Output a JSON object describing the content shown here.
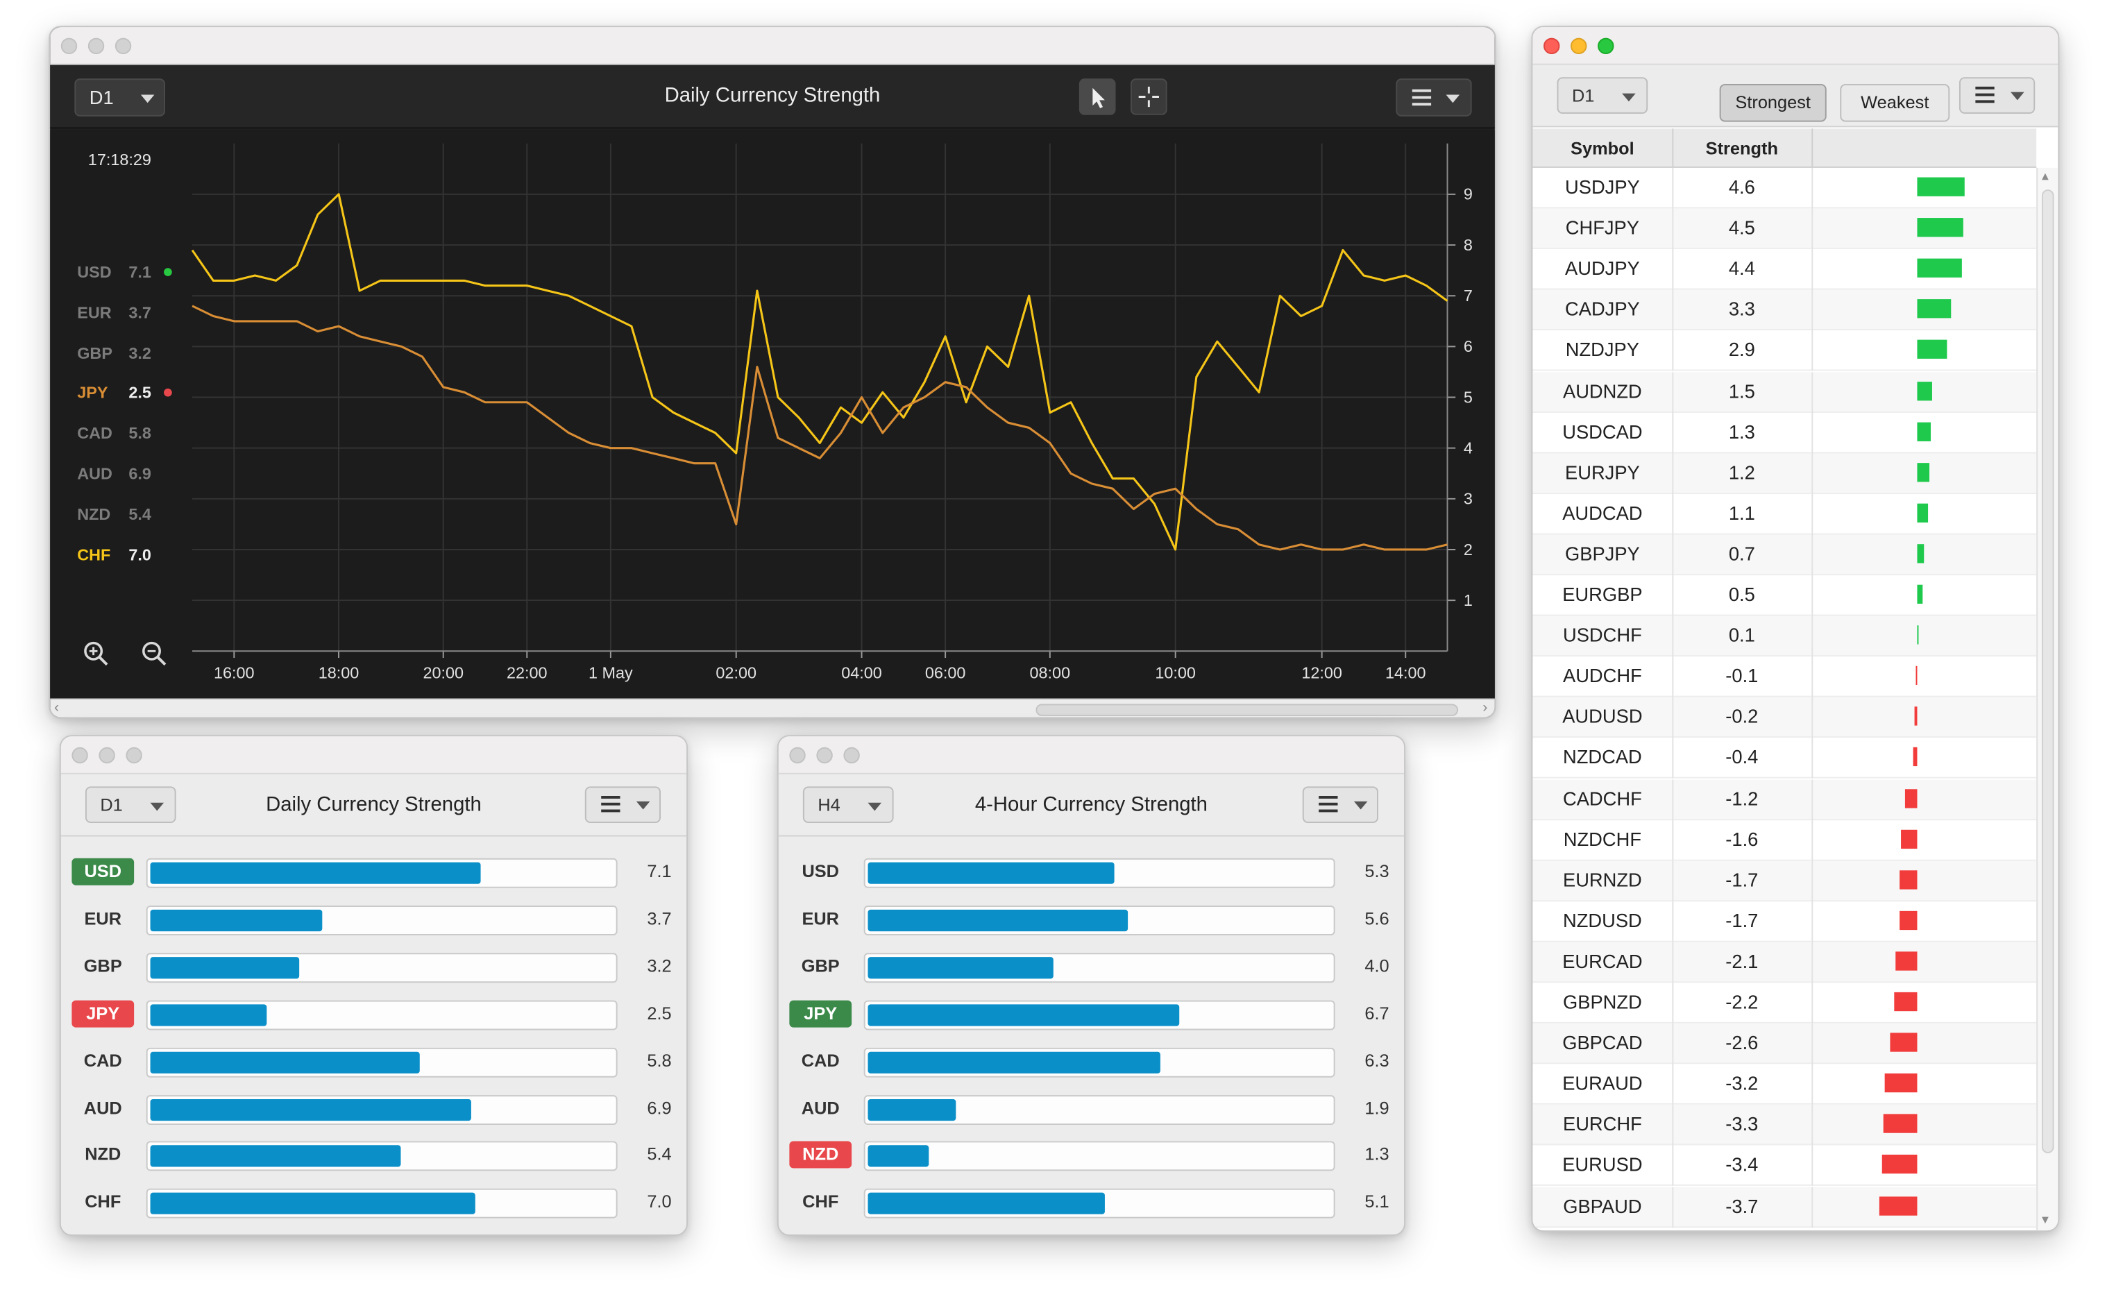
{
  "chart_window": {
    "timeframe": "D1",
    "title": "Daily Currency Strength",
    "clock": "17:18:29",
    "legend": [
      {
        "code": "USD",
        "value": "7.1",
        "dot": "#28c840"
      },
      {
        "code": "EUR",
        "value": "3.7"
      },
      {
        "code": "GBP",
        "value": "3.2"
      },
      {
        "code": "JPY",
        "value": "2.5",
        "dot": "#e8484b"
      },
      {
        "code": "CAD",
        "value": "5.8"
      },
      {
        "code": "AUD",
        "value": "6.9"
      },
      {
        "code": "NZD",
        "value": "5.4"
      },
      {
        "code": "CHF",
        "value": "7.0"
      }
    ],
    "colors": {
      "chf": "#f5c518",
      "jpy": "#d98e35",
      "usd_dot": "#28c840",
      "jpy_dot": "#e8484b"
    },
    "chart_data": {
      "type": "line",
      "x": [
        "15:00",
        "15:30",
        "16:00",
        "16:30",
        "17:00",
        "17:30",
        "17:45",
        "18:00",
        "18:15",
        "18:30",
        "19:00",
        "19:30",
        "20:00",
        "20:30",
        "21:00",
        "21:30",
        "22:00",
        "22:30",
        "23:00",
        "23:30",
        "00:00",
        "00:30",
        "01:00",
        "01:15",
        "01:30",
        "01:45",
        "02:00",
        "02:15",
        "02:30",
        "02:45",
        "03:00",
        "03:30",
        "04:00",
        "04:30",
        "05:00",
        "05:30",
        "06:00",
        "06:30",
        "07:00",
        "07:30",
        "07:45",
        "08:00",
        "08:30",
        "09:00",
        "09:15",
        "09:30",
        "09:45",
        "10:00",
        "10:15",
        "10:30",
        "10:45",
        "11:00",
        "11:15",
        "11:30",
        "12:00",
        "12:30",
        "13:00",
        "13:30",
        "14:00",
        "14:30",
        "15:00"
      ],
      "x_ticks": [
        "16:00",
        "18:00",
        "20:00",
        "22:00",
        "1 May",
        "02:00",
        "04:00",
        "06:00",
        "08:00",
        "10:00",
        "12:00",
        "14:00"
      ],
      "y_ticks": [
        1,
        2,
        3,
        4,
        5,
        6,
        7,
        8,
        9
      ],
      "ylim": [
        0,
        10
      ],
      "series": [
        {
          "name": "CHF",
          "color": "#f5c518",
          "values": [
            7.9,
            7.3,
            7.3,
            7.4,
            7.3,
            7.6,
            8.6,
            9.0,
            7.1,
            7.3,
            7.3,
            7.3,
            7.3,
            7.3,
            7.2,
            7.2,
            7.2,
            7.1,
            7.0,
            6.8,
            6.6,
            6.4,
            5.0,
            4.7,
            4.5,
            4.3,
            3.9,
            7.1,
            5.0,
            4.6,
            4.1,
            4.8,
            4.5,
            5.1,
            4.6,
            5.3,
            6.2,
            4.9,
            6.0,
            5.6,
            7.0,
            4.7,
            4.9,
            4.1,
            3.4,
            3.4,
            2.9,
            2.0,
            5.4,
            6.1,
            5.6,
            5.1,
            7.0,
            6.6,
            6.8,
            7.9,
            7.4,
            7.3,
            7.4,
            7.2,
            6.9
          ]
        },
        {
          "name": "JPY",
          "color": "#d98e35",
          "values": [
            6.8,
            6.6,
            6.5,
            6.5,
            6.5,
            6.5,
            6.3,
            6.4,
            6.2,
            6.1,
            6.0,
            5.8,
            5.2,
            5.1,
            4.9,
            4.9,
            4.9,
            4.6,
            4.3,
            4.1,
            4.0,
            4.0,
            3.9,
            3.8,
            3.7,
            3.7,
            2.5,
            5.6,
            4.2,
            4.0,
            3.8,
            4.3,
            5.0,
            4.3,
            4.8,
            5.0,
            5.3,
            5.2,
            4.8,
            4.5,
            4.4,
            4.1,
            3.5,
            3.3,
            3.2,
            2.8,
            3.1,
            3.2,
            2.8,
            2.5,
            2.4,
            2.1,
            2.0,
            2.1,
            2.0,
            2.0,
            2.1,
            2.0,
            2.0,
            2.0,
            2.1
          ]
        }
      ]
    }
  },
  "d1_panel": {
    "timeframe": "D1",
    "title": "Daily Currency Strength",
    "chart_data": {
      "type": "bar",
      "categories": [
        "USD",
        "EUR",
        "GBP",
        "JPY",
        "CAD",
        "AUD",
        "NZD",
        "CHF"
      ],
      "values": [
        7.1,
        3.7,
        3.2,
        2.5,
        5.8,
        6.9,
        5.4,
        7.0
      ],
      "value_labels": [
        "7.1",
        "3.7",
        "3.2",
        "2.5",
        "5.8",
        "6.9",
        "5.4",
        "7.0"
      ],
      "ylim": [
        0,
        10
      ],
      "highlight": {
        "USD": "green",
        "JPY": "red"
      }
    }
  },
  "h4_panel": {
    "timeframe": "H4",
    "title": "4-Hour Currency Strength",
    "chart_data": {
      "type": "bar",
      "categories": [
        "USD",
        "EUR",
        "GBP",
        "JPY",
        "CAD",
        "AUD",
        "NZD",
        "CHF"
      ],
      "values": [
        5.3,
        5.6,
        4.0,
        6.7,
        6.3,
        1.9,
        1.3,
        5.1
      ],
      "value_labels": [
        "5.3",
        "5.6",
        "4.0",
        "6.7",
        "6.3",
        "1.9",
        "1.3",
        "5.1"
      ],
      "ylim": [
        0,
        10
      ],
      "highlight": {
        "JPY": "green",
        "NZD": "red"
      }
    }
  },
  "table_window": {
    "timeframe": "D1",
    "strongest_label": "Strongest",
    "weakest_label": "Weakest",
    "col_symbol": "Symbol",
    "col_strength": "Strength",
    "colors": {
      "positive": "#1ec94c",
      "negative": "#f23b3b"
    },
    "rows": [
      {
        "symbol": "USDJPY",
        "strength": "4.6"
      },
      {
        "symbol": "CHFJPY",
        "strength": "4.5"
      },
      {
        "symbol": "AUDJPY",
        "strength": "4.4"
      },
      {
        "symbol": "CADJPY",
        "strength": "3.3"
      },
      {
        "symbol": "NZDJPY",
        "strength": "2.9"
      },
      {
        "symbol": "AUDNZD",
        "strength": "1.5"
      },
      {
        "symbol": "USDCAD",
        "strength": "1.3"
      },
      {
        "symbol": "EURJPY",
        "strength": "1.2"
      },
      {
        "symbol": "AUDCAD",
        "strength": "1.1"
      },
      {
        "symbol": "GBPJPY",
        "strength": "0.7"
      },
      {
        "symbol": "EURGBP",
        "strength": "0.5"
      },
      {
        "symbol": "USDCHF",
        "strength": "0.1"
      },
      {
        "symbol": "AUDCHF",
        "strength": "-0.1"
      },
      {
        "symbol": "AUDUSD",
        "strength": "-0.2"
      },
      {
        "symbol": "NZDCAD",
        "strength": "-0.4"
      },
      {
        "symbol": "CADCHF",
        "strength": "-1.2"
      },
      {
        "symbol": "NZDCHF",
        "strength": "-1.6"
      },
      {
        "symbol": "EURNZD",
        "strength": "-1.7"
      },
      {
        "symbol": "NZDUSD",
        "strength": "-1.7"
      },
      {
        "symbol": "EURCAD",
        "strength": "-2.1"
      },
      {
        "symbol": "GBPNZD",
        "strength": "-2.2"
      },
      {
        "symbol": "GBPCAD",
        "strength": "-2.6"
      },
      {
        "symbol": "EURAUD",
        "strength": "-3.2"
      },
      {
        "symbol": "EURCHF",
        "strength": "-3.3"
      },
      {
        "symbol": "EURUSD",
        "strength": "-3.4"
      },
      {
        "symbol": "GBPAUD",
        "strength": "-3.7"
      }
    ]
  }
}
